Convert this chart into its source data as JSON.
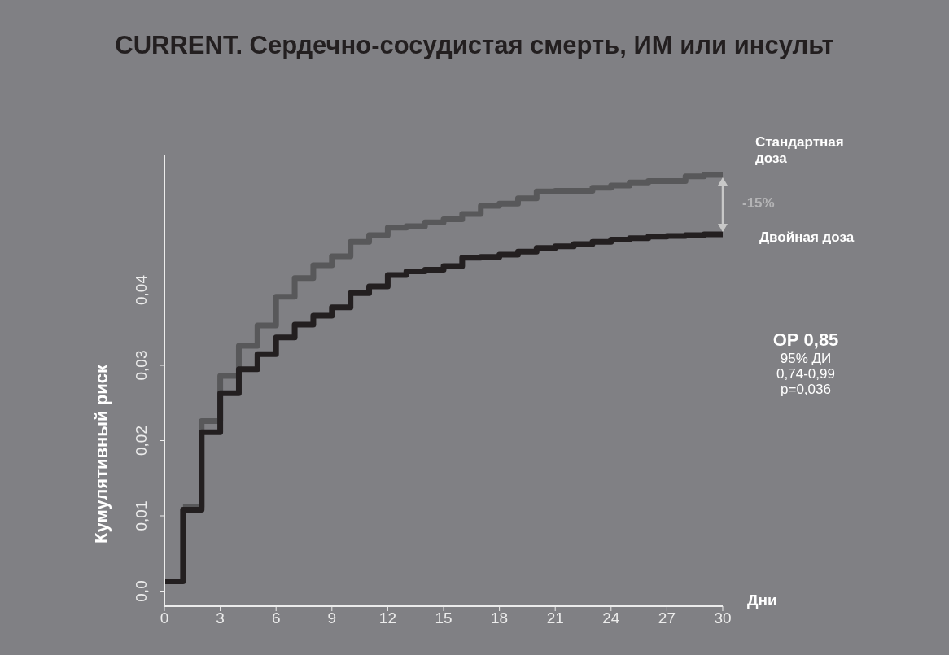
{
  "chart_data": {
    "type": "step",
    "title": "CURRENT. Сердечно-сосудистая смерть, ИМ или инсульт",
    "xlabel": "Дни",
    "ylabel": "Кумулятивный риск",
    "x": [
      0,
      1,
      2,
      3,
      4,
      5,
      6,
      7,
      8,
      9,
      10,
      11,
      12,
      13,
      14,
      15,
      16,
      17,
      18,
      19,
      20,
      21,
      22,
      23,
      24,
      25,
      26,
      27,
      28,
      29,
      30
    ],
    "series": [
      {
        "name": "Стандартная доза",
        "color": "#58585a",
        "values": [
          null,
          0.0112,
          0.0226,
          0.0286,
          0.0326,
          0.0353,
          0.0391,
          0.0416,
          0.0433,
          0.0445,
          0.0464,
          0.0473,
          0.0483,
          0.0485,
          0.049,
          0.0494,
          0.0501,
          0.0512,
          0.0515,
          0.0522,
          0.0531,
          0.0532,
          0.0532,
          0.0536,
          0.0539,
          0.0543,
          0.0545,
          0.0545,
          0.0551,
          0.0553,
          0.0553
        ]
      },
      {
        "name": "Двойная доза",
        "color": "#231f20",
        "values": [
          0.0013,
          0.0108,
          0.0211,
          0.0263,
          0.0295,
          0.0315,
          0.0337,
          0.0354,
          0.0366,
          0.0377,
          0.0396,
          0.0405,
          0.042,
          0.0425,
          0.0427,
          0.0432,
          0.0443,
          0.0444,
          0.0447,
          0.0451,
          0.0456,
          0.0458,
          0.0461,
          0.0464,
          0.0467,
          0.0469,
          0.0471,
          0.0472,
          0.0473,
          0.0474,
          0.0474
        ]
      }
    ],
    "xlim": [
      0,
      30
    ],
    "xticks": [
      0,
      3,
      6,
      9,
      12,
      15,
      18,
      21,
      24,
      27,
      30
    ],
    "ylim": [
      -0.002,
      0.058
    ],
    "yticks": [
      {
        "value": 0,
        "label": "0,0"
      },
      {
        "value": 0.01,
        "label": "0,01"
      },
      {
        "value": 0.02,
        "label": "0,02"
      },
      {
        "value": 0.03,
        "label": "0,03"
      },
      {
        "value": 0.04,
        "label": "0,04"
      }
    ],
    "annotations": [
      "-15%",
      "ОР 0,85",
      "95%  ДИ",
      "0,74-0,99",
      "p=0,036"
    ]
  }
}
